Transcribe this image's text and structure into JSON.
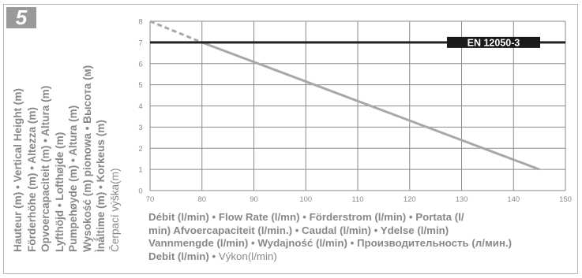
{
  "figure_number": "5",
  "y_axis_labels": [
    {
      "text": "Hauteur (m) • Vertical Height (m)",
      "bold": true
    },
    {
      "text": "Förderhöhe (m) • Altezza (m)",
      "bold": true
    },
    {
      "text": "Opvoercapaciteit (m) • Altura (m)",
      "bold": true
    },
    {
      "text": "Lyfthöjd • Lofthøjde (m)",
      "bold": true
    },
    {
      "text": "Pumpehøyde (m) • Altura (m)",
      "bold": true
    },
    {
      "text": "Wysokość (m) pionowa • Высота (м)",
      "bold": true
    },
    {
      "text": "Ìnǻltime (m) • Korkeus (m)",
      "bold": true
    },
    {
      "text": "Čerpací výška(m)",
      "bold": false
    }
  ],
  "x_axis_label": {
    "line1": "Débit (l/min) • Flow Rate (l/mn) • Förderstrom (l/min) • Portata (l/",
    "line2": "min) Afvoercapaciteit (l/min.) • Caudal (l/min) • Ydelse (l/min)",
    "line3": "Vannmengde (l/min) • Wydajność (l/min) • Производительность (л/мин.)",
    "line4_bold": "Debit (l/min) •",
    "line4_normal": " Výkon(l/min)"
  },
  "colors": {
    "curve": "#a8a8a8",
    "reference_line": "#222222",
    "grid": "#8a8a8a",
    "badge_bg": "#1a1a1a",
    "figure_badge_bg": "#9a9a9a"
  },
  "chart_data": {
    "type": "line",
    "xlim": [
      70,
      150
    ],
    "ylim": [
      0,
      8
    ],
    "x_ticks": [
      "70",
      "80",
      "90",
      "100",
      "110",
      "120",
      "130",
      "140",
      "150"
    ],
    "y_ticks": [
      "0",
      "1",
      "2",
      "3",
      "4",
      "5",
      "6",
      "7",
      "8"
    ],
    "grid": true,
    "series": [
      {
        "style": "dashed",
        "points": [
          [
            70,
            8.0
          ],
          [
            80,
            7.0
          ]
        ]
      },
      {
        "style": "solid",
        "points": [
          [
            80,
            7.0
          ],
          [
            145,
            1.0
          ]
        ]
      }
    ],
    "reference_line": {
      "y": 7.0,
      "label": "EN 12050-3"
    }
  }
}
